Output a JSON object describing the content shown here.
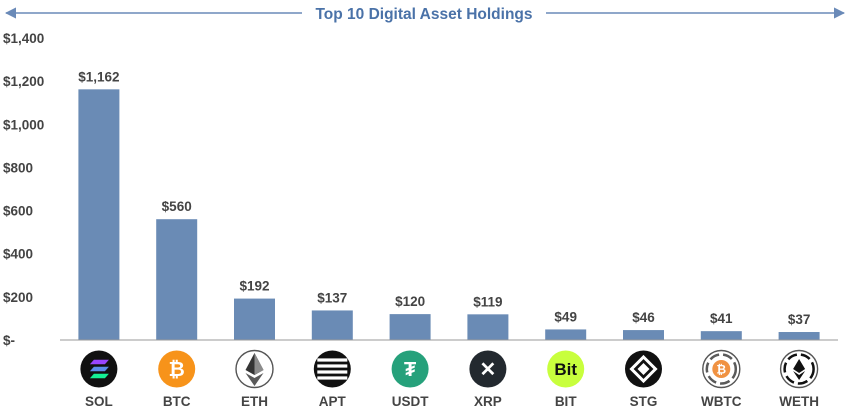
{
  "colors": {
    "bar": "#6a8bb5",
    "title": "#4a72a8",
    "arrow": "#6a8ab8",
    "text": "#444444",
    "axis": "#999999"
  },
  "chart_data": {
    "type": "bar",
    "title": "Top 10 Digital Asset Holdings",
    "xlabel": "",
    "ylabel": "",
    "ylim": [
      0,
      1400
    ],
    "grid": false,
    "legend": "none",
    "y_ticks": [
      {
        "value": 0,
        "label": "$-"
      },
      {
        "value": 200,
        "label": "$200"
      },
      {
        "value": 400,
        "label": "$400"
      },
      {
        "value": 600,
        "label": "$600"
      },
      {
        "value": 800,
        "label": "$800"
      },
      {
        "value": 1000,
        "label": "$1,000"
      },
      {
        "value": 1200,
        "label": "$1,200"
      },
      {
        "value": 1400,
        "label": "$1,400"
      }
    ],
    "categories": [
      "SOL",
      "BTC",
      "ETH",
      "APT",
      "USDT",
      "XRP",
      "BIT",
      "STG",
      "WBTC",
      "WETH"
    ],
    "values": [
      1162,
      560,
      192,
      137,
      120,
      119,
      49,
      46,
      41,
      37
    ],
    "value_labels": [
      "$1,162",
      "$560",
      "$192",
      "$137",
      "$120",
      "$119",
      "$49",
      "$46",
      "$41",
      "$37"
    ],
    "icons": [
      {
        "name": "solana-icon",
        "glyph": "",
        "bg": "#111111",
        "fg": "#ffffff"
      },
      {
        "name": "bitcoin-icon",
        "glyph": "₿",
        "bg": "#f7931a",
        "fg": "#ffffff"
      },
      {
        "name": "ethereum-icon",
        "glyph": "",
        "bg": "#ffffff",
        "fg": "#333333"
      },
      {
        "name": "aptos-icon",
        "glyph": "",
        "bg": "#111111",
        "fg": "#ffffff"
      },
      {
        "name": "tether-icon",
        "glyph": "₮",
        "bg": "#26a17b",
        "fg": "#ffffff"
      },
      {
        "name": "xrp-icon",
        "glyph": "✕",
        "bg": "#23292f",
        "fg": "#ffffff"
      },
      {
        "name": "bitdao-icon",
        "glyph": "Bit",
        "bg": "#c8ff3d",
        "fg": "#111111"
      },
      {
        "name": "stargate-icon",
        "glyph": "",
        "bg": "#111111",
        "fg": "#ffffff"
      },
      {
        "name": "wrapped-bitcoin-icon",
        "glyph": "₿",
        "bg": "#ffffff",
        "fg": "#f09242"
      },
      {
        "name": "wrapped-ether-icon",
        "glyph": "",
        "bg": "#ffffff",
        "fg": "#111111"
      }
    ]
  }
}
